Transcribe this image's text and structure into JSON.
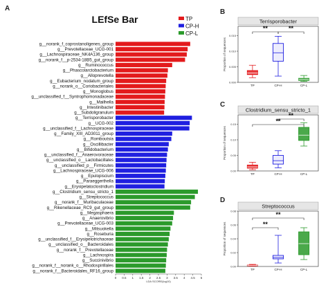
{
  "panels": {
    "A": "A",
    "B": "B",
    "C": "C",
    "D": "D"
  },
  "chart_data": [
    {
      "type": "bar",
      "orientation": "horizontal",
      "title": "LEfSe Bar",
      "xlabel": "LDA SCORE(log10)",
      "xlim": [
        0,
        5
      ],
      "xticks": [
        "0",
        "0.5",
        "1",
        "1.5",
        "2",
        "2.5",
        "3",
        "3.5",
        "4",
        "4.5",
        "5"
      ],
      "legend": {
        "placement": "top-right",
        "entries": [
          {
            "name": "TP",
            "color": "#e31a1c"
          },
          {
            "name": "CP-H",
            "color": "#1f1fe0"
          },
          {
            "name": "CP-L",
            "color": "#2b9a2b"
          }
        ]
      },
      "groups": [
        {
          "name": "TP",
          "color": "#e31a1c",
          "categories": [
            "g__norank_f_coprostanoligenes_group",
            "g__Prevotellaceae_UCG-001",
            "g__Lachnospiraceae_NK4A136_group",
            "g__norank_f__p-2534-18B5_gut_group",
            "g__Ruminococcus",
            "g__Phascolarctobacterium",
            "g__Alloprevotella",
            "g__Eubacterium_nodatum_group",
            "g__norank_o__Coriobacteriales",
            "g__Monoglobus",
            "g__unclassified_f__Syntrophomonadaceae",
            "g__Mailhella",
            "g__Intestinibacter",
            "g__Subdoligranulum"
          ],
          "values": [
            4.35,
            4.2,
            4.15,
            4.05,
            3.3,
            3.05,
            3.02,
            2.95,
            2.92,
            2.9,
            2.88,
            2.86,
            2.85,
            2.83
          ]
        },
        {
          "name": "CP-H",
          "color": "#1f1fe0",
          "categories": [
            "g__Terrisporobacter",
            "g__UCG-002",
            "g__unclassified_f__Lachnospiraceae",
            "g__Family_XIII_AD3011_group",
            "g__Romboutsia",
            "g__Oscillibacter",
            "g__Bifidobacterium",
            "g__unclassified_f__Anaerovoraceae",
            "g__unclassified_o__Lactobacillales",
            "g__unclassified_p__Firmicutes",
            "g__Lachnospiraceae_UCG-006",
            "g__Epulopiscium",
            "g__Paraeggerthella",
            "g__Erysipelatoclostridium"
          ],
          "values": [
            4.45,
            4.32,
            4.3,
            3.3,
            3.25,
            3.1,
            3.05,
            3.0,
            2.97,
            2.95,
            2.93,
            2.9,
            2.87,
            2.85
          ]
        },
        {
          "name": "CP-L",
          "color": "#2b9a2b",
          "categories": [
            "g__Clostridium_sensu_stricto_1",
            "g__Streptococcus",
            "g__norank_f__Muribaculaceae",
            "g__Rikenellaceae_RC9_gut_group",
            "g__Megasphaera",
            "g__Anaerovibrio",
            "g__Prevotellaceae_UCG-003",
            "g__Mitsuokella",
            "g__Roseburia",
            "g__unclassified_f__Erysipelotrichaceae",
            "g__unclassified_o__Bacteroidales",
            "g__norank_f__Prevotellaceae",
            "g__Lachnospira",
            "g__Succinivibrio",
            "g__norank_f__norank_o__Rhodospirillales",
            "g__norank_f__Bacteroidales_RF16_group"
          ],
          "values": [
            4.8,
            4.62,
            4.4,
            4.35,
            3.4,
            3.35,
            3.3,
            3.2,
            3.15,
            3.1,
            3.05,
            3.0,
            2.98,
            2.95,
            2.93,
            2.9
          ]
        }
      ]
    },
    {
      "type": "box",
      "panel": "B",
      "title": "Terrisporobacter",
      "ylabel": "Proportion of sequences",
      "yticks": [
        "0.000",
        "0.005",
        "0.010",
        "0.015"
      ],
      "categories": [
        "TP",
        "CP-H",
        "CP-L"
      ],
      "colors": [
        "#e31a1c",
        "#1f1fe0",
        "#2b9a2b"
      ],
      "boxes": [
        {
          "min": 0.0015,
          "q1": 0.0025,
          "median": 0.003,
          "q3": 0.0038,
          "max": 0.0055
        },
        {
          "min": 0.002,
          "q1": 0.0068,
          "median": 0.0095,
          "q3": 0.0125,
          "max": 0.0148
        },
        {
          "min": 0.0003,
          "q1": 0.0006,
          "median": 0.0009,
          "q3": 0.0013,
          "max": 0.0022
        }
      ],
      "ylim": [
        0,
        0.018
      ],
      "significance": [
        {
          "pair": [
            "TP",
            "CP-H"
          ],
          "label": "**"
        },
        {
          "pair": [
            "CP-H",
            "CP-L"
          ],
          "label": "**"
        }
      ]
    },
    {
      "type": "box",
      "panel": "C",
      "title": "Clostridium_sensu_stricto_1",
      "ylabel": "Proportion of sequences",
      "yticks": [
        "0.00",
        "0.05",
        "0.10",
        "0.15"
      ],
      "categories": [
        "TP",
        "CP-H",
        "CP-L"
      ],
      "colors": [
        "#e31a1c",
        "#1f1fe0",
        "#2b9a2b"
      ],
      "boxes": [
        {
          "min": 0.004,
          "q1": 0.009,
          "median": 0.013,
          "q3": 0.019,
          "max": 0.028
        },
        {
          "min": 0.01,
          "q1": 0.022,
          "median": 0.033,
          "q3": 0.05,
          "max": 0.065
        },
        {
          "min": 0.08,
          "q1": 0.098,
          "median": 0.115,
          "q3": 0.14,
          "max": 0.155
        }
      ],
      "ylim": [
        0,
        0.18
      ],
      "significance": [
        {
          "pair": [
            "TP",
            "CP-L"
          ],
          "label": "**"
        },
        {
          "pair": [
            "CP-H",
            "CP-L"
          ],
          "label": "**"
        }
      ]
    },
    {
      "type": "box",
      "panel": "D",
      "title": "Streptococcus",
      "ylabel": "Proportion of sequences",
      "yticks": [
        "0.00",
        "0.02",
        "0.04",
        "0.06",
        "0.08"
      ],
      "categories": [
        "TP",
        "CP-H",
        "CP-L"
      ],
      "colors": [
        "#e31a1c",
        "#1f1fe0",
        "#2b9a2b"
      ],
      "boxes": [
        {
          "min": 0.0005,
          "q1": 0.001,
          "median": 0.0015,
          "q3": 0.002,
          "max": 0.003
        },
        {
          "min": 0.005,
          "q1": 0.011,
          "median": 0.013,
          "q3": 0.016,
          "max": 0.045
        },
        {
          "min": 0.01,
          "q1": 0.017,
          "median": 0.033,
          "q3": 0.05,
          "max": 0.056
        }
      ],
      "ylim": [
        0,
        0.08
      ],
      "significance": [
        {
          "pair": [
            "TP",
            "CP-H"
          ],
          "label": "**"
        },
        {
          "pair": [
            "TP",
            "CP-L"
          ],
          "label": "**"
        }
      ]
    }
  ]
}
